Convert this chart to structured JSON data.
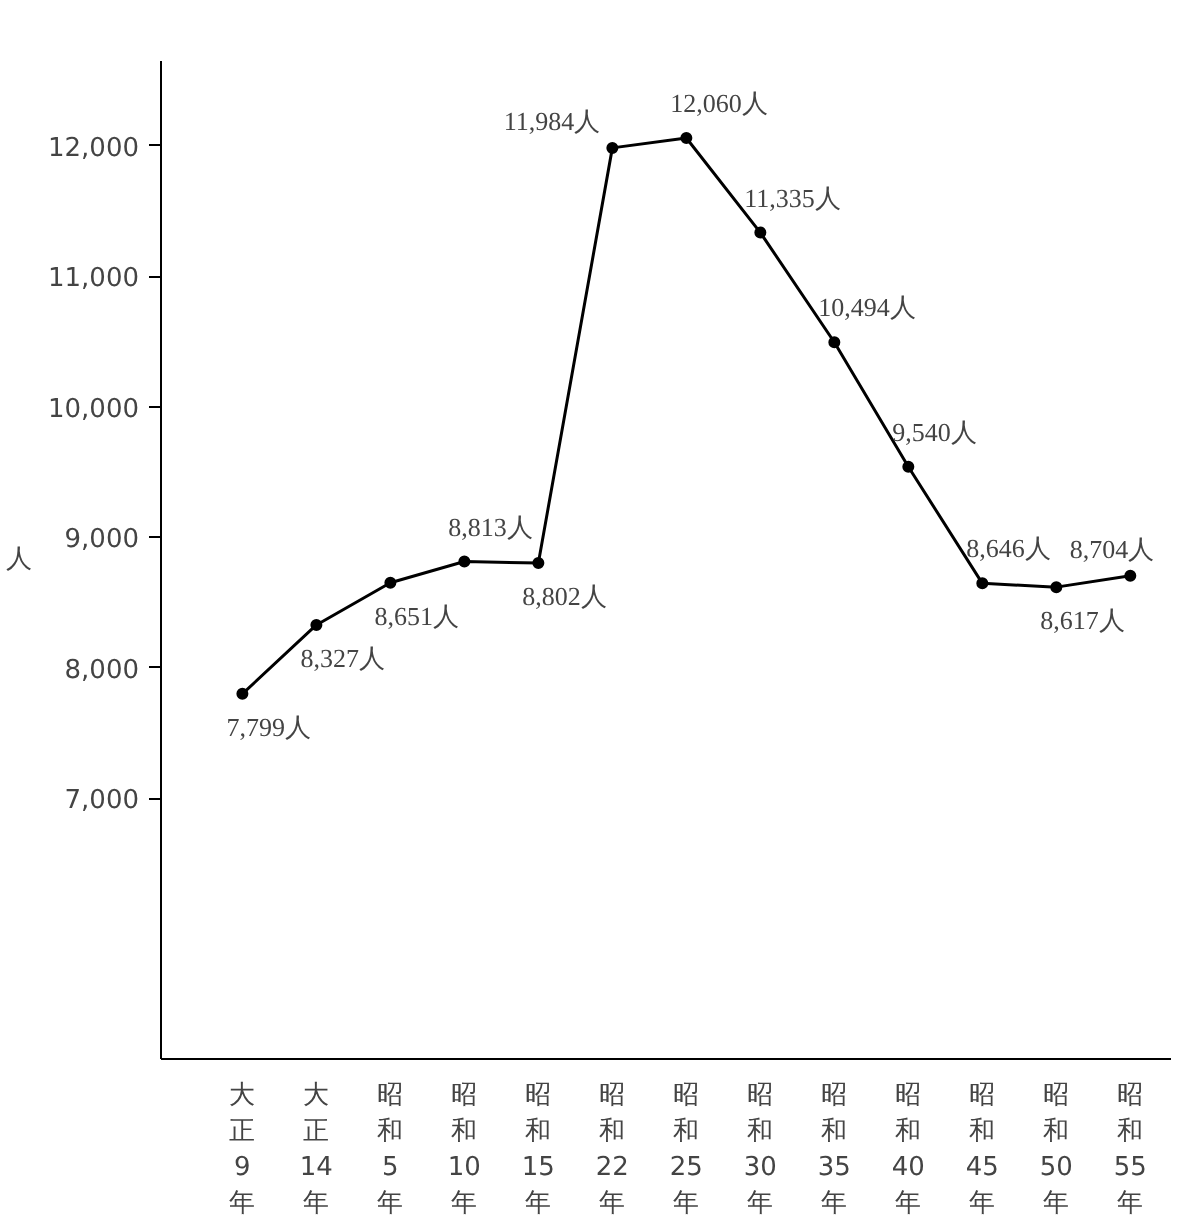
{
  "chart_data": {
    "type": "line",
    "ylabel": "人",
    "categories": [
      "大正9年",
      "大正14年",
      "昭和5年",
      "昭和10年",
      "昭和15年",
      "昭和22年",
      "昭和25年",
      "昭和30年",
      "昭和35年",
      "昭和40年",
      "昭和45年",
      "昭和50年",
      "昭和55年"
    ],
    "series": [
      {
        "color": "#000000",
        "values": [
          7799,
          8327,
          8651,
          8813,
          8802,
          11984,
          12060,
          11335,
          10494,
          9540,
          8646,
          8617,
          8704
        ],
        "value_labels": [
          "7,799人",
          "8,327人",
          "8,651人",
          "8,813人",
          "8,802人",
          "11,984人",
          "12,060人",
          "11,335人",
          "10,494人",
          "9,540人",
          "8,646人",
          "8,617人",
          "8,704人"
        ]
      }
    ],
    "ylim": [
      5000,
      12650
    ],
    "yticks": [
      {
        "value": 7000,
        "label": "7,000"
      },
      {
        "value": 8000,
        "label": "8,000"
      },
      {
        "value": 9000,
        "label": "9,000"
      },
      {
        "value": 10000,
        "label": "10,000"
      },
      {
        "value": 11000,
        "label": "11,000"
      },
      {
        "value": 12000,
        "label": "12,000"
      }
    ],
    "grid": false,
    "marker": "circle",
    "line_style": "solid"
  }
}
